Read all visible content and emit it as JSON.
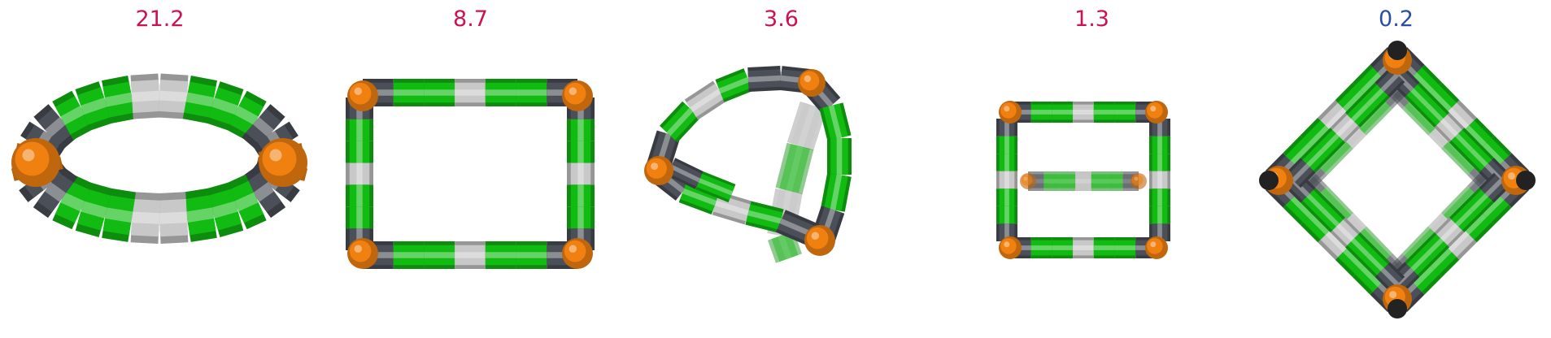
{
  "panels": [
    {
      "value": "21.2",
      "color": "#cc1155",
      "shape": "ellipse-ring"
    },
    {
      "value": "8.7",
      "color": "#cc1155",
      "shape": "square-ring"
    },
    {
      "value": "3.6",
      "color": "#cc1155",
      "shape": "twisted-loop"
    },
    {
      "value": "1.3",
      "color": "#cc1155",
      "shape": "box-frame"
    },
    {
      "value": "0.2",
      "color": "#2a4ea8",
      "shape": "diamond-frame"
    }
  ],
  "palette": {
    "green": "#11bb11",
    "grey_dark": "#4b5058",
    "grey_light": "#c8c8c8",
    "orange": "#f08010"
  }
}
